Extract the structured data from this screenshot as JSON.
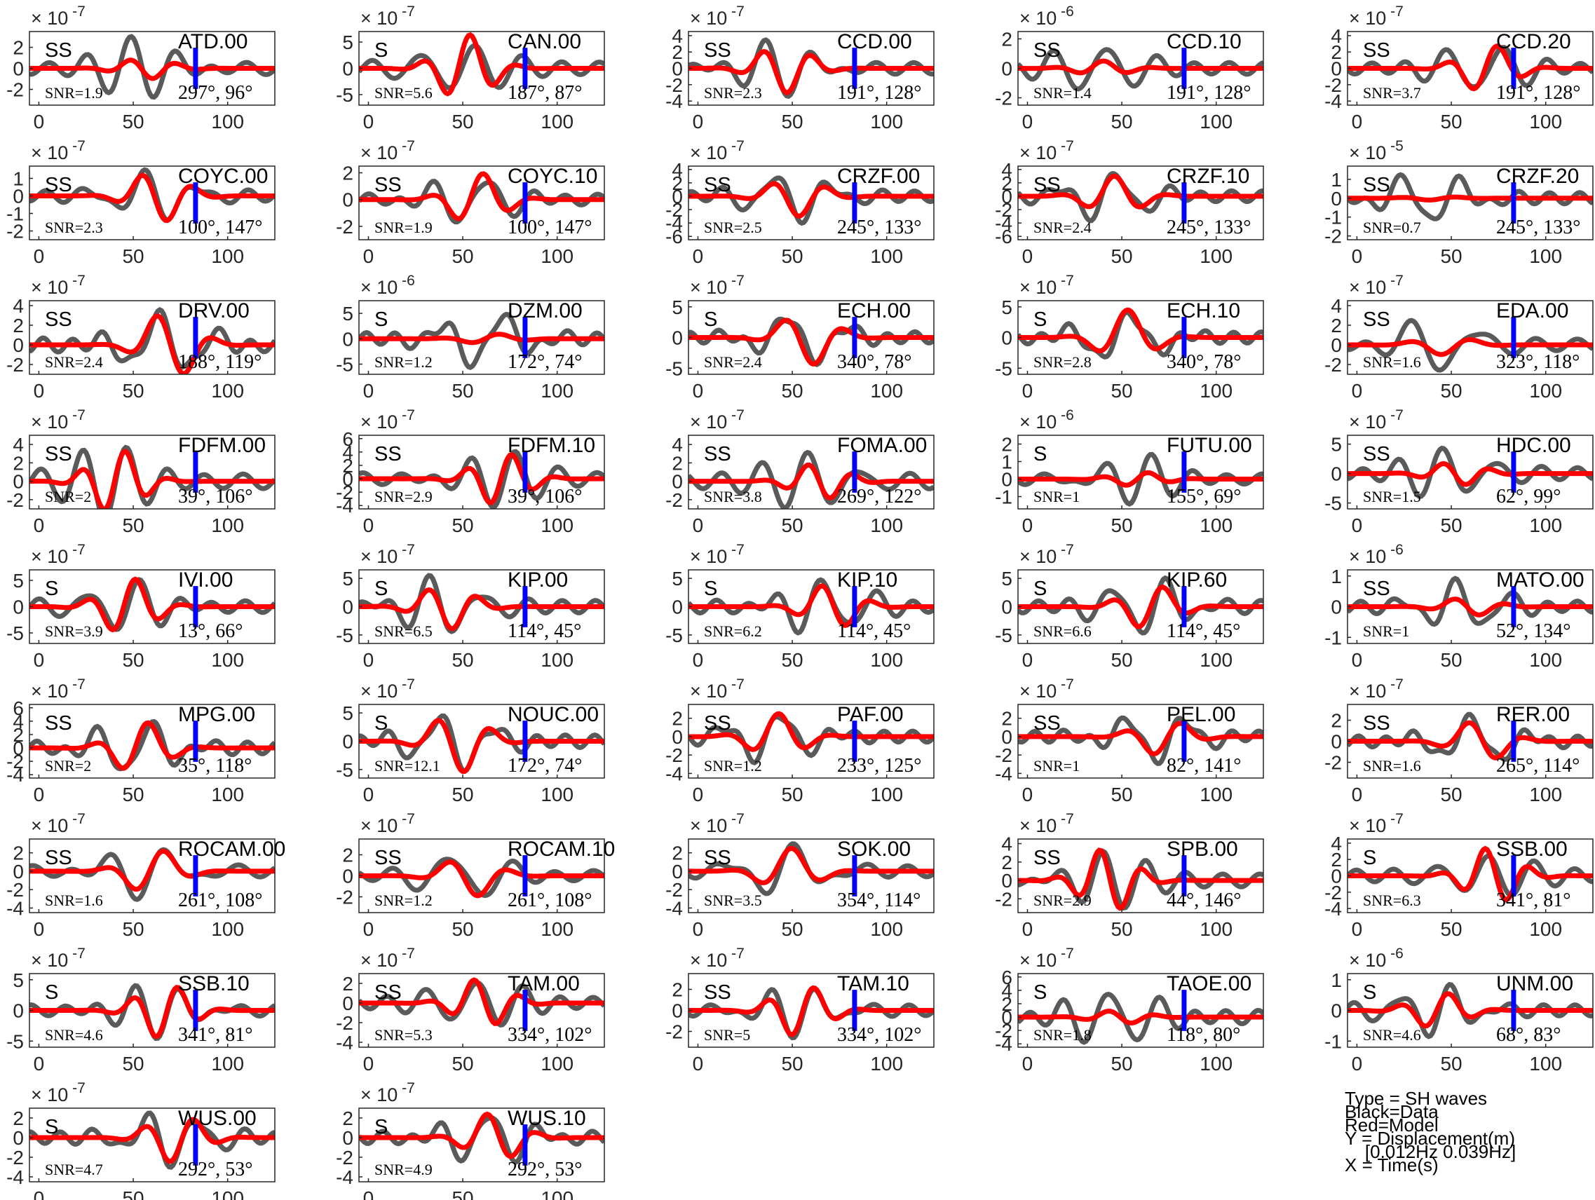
{
  "chart_data": {
    "type": "line",
    "layout": {
      "columns": 5,
      "rows": 9
    },
    "series_legend": {
      "data_color": "#5a5a5a",
      "model_color": "#ff0000",
      "marker_color": "#0000ff"
    },
    "x_ticks": [
      0,
      50,
      100
    ],
    "xlim": [
      -5,
      125
    ],
    "pick_time": 83,
    "panels": [
      {
        "station": "ATD.00",
        "phase": "SS",
        "snr": "SNR=1.9",
        "angles": "297°, 96°",
        "exp": "-7",
        "yticks": [
          -2,
          0,
          2
        ],
        "ylim": [
          -3.5,
          3.5
        ],
        "seed": 1,
        "da": 3.0,
        "ma": 1.0
      },
      {
        "station": "CAN.00",
        "phase": "S",
        "snr": "SNR=5.6",
        "angles": "187°, 87°",
        "exp": "-7",
        "yticks": [
          -5,
          0,
          5
        ],
        "ylim": [
          -7,
          7
        ],
        "seed": 2,
        "da": 6.0,
        "ma": 6.5
      },
      {
        "station": "CCD.00",
        "phase": "SS",
        "snr": "SNR=2.3",
        "angles": "191°, 128°",
        "exp": "-7",
        "yticks": [
          -4,
          -2,
          0,
          2,
          4
        ],
        "ylim": [
          -4.5,
          4.5
        ],
        "seed": 3,
        "da": 3.5,
        "ma": 3.0
      },
      {
        "station": "CCD.10",
        "phase": "SS",
        "snr": "SNR=1.4",
        "angles": "191°, 128°",
        "exp": "-6",
        "yticks": [
          -2,
          0,
          2
        ],
        "ylim": [
          -2.5,
          2.5
        ],
        "seed": 4,
        "da": 2.0,
        "ma": 0.5
      },
      {
        "station": "CCD.20",
        "phase": "SS",
        "snr": "SNR=3.7",
        "angles": "191°, 128°",
        "exp": "-7",
        "yticks": [
          -4,
          -2,
          0,
          2,
          4
        ],
        "ylim": [
          -4.5,
          4.5
        ],
        "seed": 5,
        "da": 3.5,
        "ma": 3.0
      },
      {
        "station": "COYC.00",
        "phase": "SS",
        "snr": "SNR=2.3",
        "angles": "100°, 147°",
        "exp": "-7",
        "yticks": [
          -2,
          -1,
          0,
          1
        ],
        "ylim": [
          -2.5,
          1.7
        ],
        "seed": 6,
        "da": 1.5,
        "ma": 1.5
      },
      {
        "station": "COYC.10",
        "phase": "SS",
        "snr": "SNR=1.9",
        "angles": "100°, 147°",
        "exp": "-7",
        "yticks": [
          -2,
          0,
          2
        ],
        "ylim": [
          -3,
          2.5
        ],
        "seed": 7,
        "da": 2.0,
        "ma": 2.0
      },
      {
        "station": "CRZF.00",
        "phase": "SS",
        "snr": "SNR=2.5",
        "angles": "245°, 133°",
        "exp": "-7",
        "yticks": [
          -6,
          -4,
          -2,
          0,
          2,
          4
        ],
        "ylim": [
          -6.5,
          4.5
        ],
        "seed": 8,
        "da": 4.0,
        "ma": 3.0
      },
      {
        "station": "CRZF.10",
        "phase": "SS",
        "snr": "SNR=2.4",
        "angles": "245°, 133°",
        "exp": "-7",
        "yticks": [
          -6,
          -4,
          -2,
          0,
          2,
          4
        ],
        "ylim": [
          -6.5,
          4.5
        ],
        "seed": 9,
        "da": 4.0,
        "ma": 3.0
      },
      {
        "station": "CRZF.20",
        "phase": "SS",
        "snr": "SNR=0.7",
        "angles": "245°, 133°",
        "exp": "-5",
        "yticks": [
          -2,
          -1,
          0,
          1
        ],
        "ylim": [
          -2.2,
          1.7
        ],
        "seed": 10,
        "da": 1.5,
        "ma": 0.1
      },
      {
        "station": "DRV.00",
        "phase": "SS",
        "snr": "SNR=2.4",
        "angles": "188°, 119°",
        "exp": "-7",
        "yticks": [
          -2,
          0,
          2,
          4
        ],
        "ylim": [
          -3,
          4.5
        ],
        "seed": 11,
        "da": 3.5,
        "ma": 3.5
      },
      {
        "station": "DZM.00",
        "phase": "S",
        "snr": "SNR=1.2",
        "angles": "172°, 74°",
        "exp": "-6",
        "yticks": [
          -5,
          0,
          5
        ],
        "ylim": [
          -7,
          7.5
        ],
        "seed": 12,
        "da": 6.0,
        "ma": 1.0
      },
      {
        "station": "ECH.00",
        "phase": "S",
        "snr": "SNR=2.4",
        "angles": "340°, 78°",
        "exp": "-7",
        "yticks": [
          -5,
          0,
          5
        ],
        "ylim": [
          -6,
          6
        ],
        "seed": 13,
        "da": 4.5,
        "ma": 4.5
      },
      {
        "station": "ECH.10",
        "phase": "S",
        "snr": "SNR=2.8",
        "angles": "340°, 78°",
        "exp": "-7",
        "yticks": [
          -5,
          0,
          5
        ],
        "ylim": [
          -6,
          6
        ],
        "seed": 14,
        "da": 4.5,
        "ma": 4.5
      },
      {
        "station": "EDA.00",
        "phase": "SS",
        "snr": "SNR=1.6",
        "angles": "323°, 118°",
        "exp": "-7",
        "yticks": [
          -2,
          0,
          2,
          4
        ],
        "ylim": [
          -3,
          4.5
        ],
        "seed": 15,
        "da": 3.0,
        "ma": 1.0
      },
      {
        "station": "FDFM.00",
        "phase": "SS",
        "snr": "SNR=2",
        "angles": "39°, 106°",
        "exp": "-7",
        "yticks": [
          -2,
          0,
          2,
          4
        ],
        "ylim": [
          -3,
          5
        ],
        "seed": 16,
        "da": 4.0,
        "ma": 3.5
      },
      {
        "station": "FDFM.10",
        "phase": "SS",
        "snr": "SNR=2.9",
        "angles": "39°, 106°",
        "exp": "-7",
        "yticks": [
          -4,
          -2,
          0,
          2,
          4,
          6
        ],
        "ylim": [
          -4.5,
          6.5
        ],
        "seed": 17,
        "da": 4.5,
        "ma": 4.0
      },
      {
        "station": "FOMA.00",
        "phase": "SS",
        "snr": "SNR=3.8",
        "angles": "269°, 122°",
        "exp": "-7",
        "yticks": [
          -2,
          0,
          2,
          4
        ],
        "ylim": [
          -3,
          5
        ],
        "seed": 18,
        "da": 4.0,
        "ma": 2.0
      },
      {
        "station": "FUTU.00",
        "phase": "S",
        "snr": "SNR=1",
        "angles": "155°, 69°",
        "exp": "-6",
        "yticks": [
          -1,
          0,
          1,
          2
        ],
        "ylim": [
          -1.7,
          2.5
        ],
        "seed": 19,
        "da": 1.5,
        "ma": 0.4
      },
      {
        "station": "HDC.00",
        "phase": "SS",
        "snr": "SNR=1.5",
        "angles": "62°, 99°",
        "exp": "-7",
        "yticks": [
          -5,
          0,
          5
        ],
        "ylim": [
          -6,
          6.5
        ],
        "seed": 20,
        "da": 5.0,
        "ma": 2.0
      },
      {
        "station": "IVI.00",
        "phase": "S",
        "snr": "SNR=3.9",
        "angles": "13°, 66°",
        "exp": "-7",
        "yticks": [
          -5,
          0,
          5
        ],
        "ylim": [
          -7,
          7
        ],
        "seed": 21,
        "da": 5.5,
        "ma": 5.5
      },
      {
        "station": "KIP.00",
        "phase": "S",
        "snr": "SNR=6.5",
        "angles": "114°, 45°",
        "exp": "-7",
        "yticks": [
          -5,
          0,
          5
        ],
        "ylim": [
          -6.5,
          6.5
        ],
        "seed": 22,
        "da": 5.5,
        "ma": 4.0
      },
      {
        "station": "KIP.10",
        "phase": "S",
        "snr": "SNR=6.2",
        "angles": "114°, 45°",
        "exp": "-7",
        "yticks": [
          -5,
          0,
          5
        ],
        "ylim": [
          -6.5,
          6.5
        ],
        "seed": 23,
        "da": 5.5,
        "ma": 4.0
      },
      {
        "station": "KIP.60",
        "phase": "S",
        "snr": "SNR=6.6",
        "angles": "114°, 45°",
        "exp": "-7",
        "yticks": [
          -5,
          0,
          5
        ],
        "ylim": [
          -6.5,
          6.5
        ],
        "seed": 24,
        "da": 5.5,
        "ma": 4.0
      },
      {
        "station": "MATO.00",
        "phase": "SS",
        "snr": "SNR=1",
        "angles": "52°, 134°",
        "exp": "-6",
        "yticks": [
          -1,
          0,
          1
        ],
        "ylim": [
          -1.2,
          1.2
        ],
        "seed": 25,
        "da": 0.9,
        "ma": 0.3
      },
      {
        "station": "MPG.00",
        "phase": "SS",
        "snr": "SNR=2",
        "angles": "35°, 118°",
        "exp": "-7",
        "yticks": [
          -4,
          -2,
          0,
          2,
          4,
          6
        ],
        "ylim": [
          -4.5,
          6.5
        ],
        "seed": 26,
        "da": 4.5,
        "ma": 4.0
      },
      {
        "station": "NOUC.00",
        "phase": "S",
        "snr": "SNR=12.1",
        "angles": "172°, 74°",
        "exp": "-7",
        "yticks": [
          -5,
          0,
          5
        ],
        "ylim": [
          -6.5,
          6.5
        ],
        "seed": 27,
        "da": 5.5,
        "ma": 5.5
      },
      {
        "station": "PAF.00",
        "phase": "SS",
        "snr": "SNR=1.2",
        "angles": "233°, 125°",
        "exp": "-7",
        "yticks": [
          -4,
          -2,
          0,
          2
        ],
        "ylim": [
          -4.5,
          3.5
        ],
        "seed": 28,
        "da": 3.0,
        "ma": 2.5
      },
      {
        "station": "PEL.00",
        "phase": "SS",
        "snr": "SNR=1",
        "angles": "82°, 141°",
        "exp": "-7",
        "yticks": [
          -4,
          -2,
          0,
          2
        ],
        "ylim": [
          -4.5,
          3.5
        ],
        "seed": 29,
        "da": 3.0,
        "ma": 2.0
      },
      {
        "station": "RER.00",
        "phase": "SS",
        "snr": "SNR=1.6",
        "angles": "265°, 114°",
        "exp": "-7",
        "yticks": [
          -2,
          0,
          2
        ],
        "ylim": [
          -3.5,
          3.5
        ],
        "seed": 30,
        "da": 2.5,
        "ma": 2.0
      },
      {
        "station": "ROCAM.00",
        "phase": "SS",
        "snr": "SNR=1.6",
        "angles": "261°, 108°",
        "exp": "-7",
        "yticks": [
          -4,
          -2,
          0,
          2
        ],
        "ylim": [
          -4.5,
          3.5
        ],
        "seed": 31,
        "da": 3.0,
        "ma": 2.5
      },
      {
        "station": "ROCAM.10",
        "phase": "SS",
        "snr": "SNR=1.2",
        "angles": "261°, 108°",
        "exp": "-7",
        "yticks": [
          -2,
          0,
          2
        ],
        "ylim": [
          -3.5,
          3.5
        ],
        "seed": 32,
        "da": 2.5,
        "ma": 2.0
      },
      {
        "station": "SOK.00",
        "phase": "SS",
        "snr": "SNR=3.5",
        "angles": "354°, 114°",
        "exp": "-7",
        "yticks": [
          -4,
          -2,
          0,
          2
        ],
        "ylim": [
          -4.5,
          3.5
        ],
        "seed": 33,
        "da": 3.0,
        "ma": 2.5
      },
      {
        "station": "SPB.00",
        "phase": "SS",
        "snr": "SNR=2.9",
        "angles": "44°, 146°",
        "exp": "-7",
        "yticks": [
          -2,
          0,
          2,
          4
        ],
        "ylim": [
          -3.5,
          4.5
        ],
        "seed": 34,
        "da": 3.5,
        "ma": 3.5
      },
      {
        "station": "SSB.00",
        "phase": "S",
        "snr": "SNR=6.3",
        "angles": "341°, 81°",
        "exp": "-7",
        "yticks": [
          -4,
          -2,
          0,
          2,
          4
        ],
        "ylim": [
          -4.5,
          4.5
        ],
        "seed": 35,
        "da": 3.5,
        "ma": 3.5
      },
      {
        "station": "SSB.10",
        "phase": "S",
        "snr": "SNR=4.6",
        "angles": "341°, 81°",
        "exp": "-7",
        "yticks": [
          -5,
          0,
          5
        ],
        "ylim": [
          -6,
          6
        ],
        "seed": 36,
        "da": 4.5,
        "ma": 4.5
      },
      {
        "station": "TAM.00",
        "phase": "SS",
        "snr": "SNR=5.3",
        "angles": "334°, 102°",
        "exp": "-7",
        "yticks": [
          -4,
          -2,
          0,
          2
        ],
        "ylim": [
          -4.5,
          3
        ],
        "seed": 37,
        "da": 3.0,
        "ma": 2.5
      },
      {
        "station": "TAM.10",
        "phase": "SS",
        "snr": "SNR=5",
        "angles": "334°, 102°",
        "exp": "-7",
        "yticks": [
          -2,
          0,
          2
        ],
        "ylim": [
          -3.5,
          3.5
        ],
        "seed": 38,
        "da": 2.5,
        "ma": 2.5
      },
      {
        "station": "TAOE.00",
        "phase": "S",
        "snr": "SNR=1.8",
        "angles": "118°, 80°",
        "exp": "-7",
        "yticks": [
          -4,
          -2,
          0,
          2,
          4,
          6
        ],
        "ylim": [
          -4.5,
          6.5
        ],
        "seed": 39,
        "da": 5.0,
        "ma": 1.0
      },
      {
        "station": "UNM.00",
        "phase": "S",
        "snr": "SNR=4.6",
        "angles": "68°, 83°",
        "exp": "-6",
        "yticks": [
          -1,
          0,
          1
        ],
        "ylim": [
          -1.2,
          1.2
        ],
        "seed": 40,
        "da": 0.9,
        "ma": 0.6
      },
      {
        "station": "WUS.00",
        "phase": "S",
        "snr": "SNR=4.7",
        "angles": "292°, 53°",
        "exp": "-7",
        "yticks": [
          -4,
          -2,
          0,
          2
        ],
        "ylim": [
          -4.5,
          3
        ],
        "seed": 41,
        "da": 3.0,
        "ma": 2.5
      },
      {
        "station": "WUS.10",
        "phase": "S",
        "snr": "SNR=4.9",
        "angles": "292°, 53°",
        "exp": "-7",
        "yticks": [
          -4,
          -2,
          0,
          2
        ],
        "ylim": [
          -4.5,
          3
        ],
        "seed": 42,
        "da": 3.0,
        "ma": 2.5
      }
    ]
  },
  "legend": {
    "line1": "Type = SH waves",
    "line2": "Black=Data",
    "line3": "Red=Model",
    "line4": "Y = Displacement(m)",
    "line5": "    [0.012Hz 0.039Hz]",
    "line6": "X = Time(s)"
  }
}
